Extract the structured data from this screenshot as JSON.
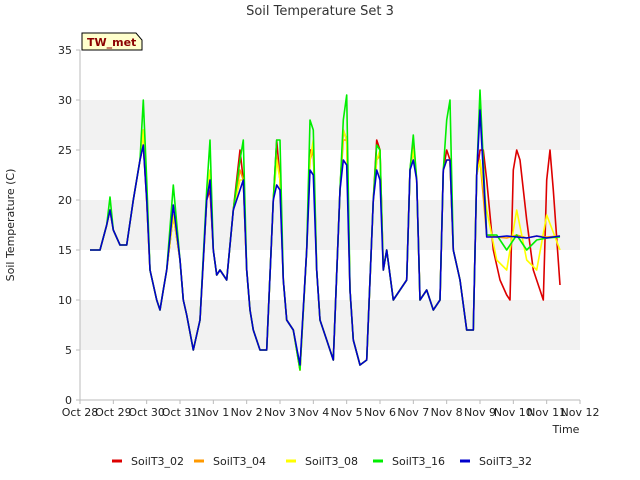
{
  "chart_data": {
    "type": "line",
    "title": "Soil Temperature Set 3",
    "xlabel": "Time",
    "ylabel": "Soil Temperature (C)",
    "ylim": [
      0,
      35
    ],
    "xlim": [
      0,
      15
    ],
    "yticks": [
      0,
      5,
      10,
      15,
      20,
      25,
      30,
      35
    ],
    "xticks": [
      "Oct 28",
      "Oct 29",
      "Oct 30",
      "Oct 31",
      "Nov 1",
      "Nov 2",
      "Nov 3",
      "Nov 4",
      "Nov 5",
      "Nov 6",
      "Nov 7",
      "Nov 8",
      "Nov 9",
      "Nov 10",
      "Nov 11",
      "Nov 12"
    ],
    "x_unit": "days since Oct 28",
    "grid": "horizontal bands",
    "legend_position": "bottom",
    "badge": "TW_met",
    "series": [
      {
        "name": "SoilT3_02",
        "color": "#dd0000",
        "x": [
          0.3,
          0.6,
          0.8,
          0.9,
          1.0,
          1.2,
          1.4,
          1.6,
          1.8,
          1.9,
          2.0,
          2.1,
          2.3,
          2.4,
          2.5,
          2.6,
          2.8,
          3.0,
          3.1,
          3.2,
          3.4,
          3.6,
          3.8,
          3.9,
          4.0,
          4.1,
          4.2,
          4.4,
          4.6,
          4.8,
          4.9,
          5.0,
          5.1,
          5.2,
          5.4,
          5.6,
          5.8,
          5.9,
          6.0,
          6.1,
          6.2,
          6.4,
          6.6,
          6.8,
          6.9,
          7.0,
          7.1,
          7.2,
          7.4,
          7.6,
          7.8,
          7.9,
          8.0,
          8.1,
          8.2,
          8.4,
          8.6,
          8.8,
          8.9,
          9.0,
          9.1,
          9.2,
          9.4,
          9.6,
          9.8,
          9.9,
          10.0,
          10.1,
          10.2,
          10.4,
          10.6,
          10.8,
          10.9,
          11.0,
          11.1,
          11.2,
          11.4,
          11.6,
          11.8,
          11.9,
          12.0,
          12.1,
          12.2,
          12.4,
          12.6,
          12.8,
          12.9,
          13.0,
          13.1,
          13.2,
          13.4,
          13.6,
          13.8,
          13.9,
          14.0,
          14.1,
          14.2,
          14.4
        ],
        "y": [
          15.0,
          15.0,
          17.5,
          19.0,
          17.0,
          15.5,
          15.5,
          20.0,
          24.0,
          25.5,
          20.0,
          13.0,
          10.0,
          9.0,
          11.0,
          13.0,
          18.5,
          14.0,
          10.0,
          8.5,
          5.0,
          8.0,
          20.0,
          21.0,
          15.0,
          12.5,
          13.0,
          12.0,
          19.0,
          25.0,
          22.0,
          13.0,
          9.0,
          7.0,
          5.0,
          5.0,
          20.0,
          26.0,
          22.0,
          12.0,
          8.0,
          7.0,
          3.0,
          15.0,
          25.0,
          25.0,
          13.0,
          8.0,
          6.0,
          4.0,
          21.0,
          27.0,
          26.0,
          11.0,
          6.0,
          3.5,
          4.0,
          20.0,
          26.0,
          25.0,
          13.0,
          15.0,
          10.0,
          11.0,
          12.0,
          23.0,
          25.0,
          22.0,
          10.0,
          11.0,
          9.0,
          10.0,
          23.0,
          25.0,
          24.0,
          15.0,
          12.0,
          7.0,
          7.0,
          22.5,
          25.0,
          25.0,
          22.0,
          15.0,
          12.0,
          10.5,
          10.0,
          23.0,
          25.0,
          24.0,
          18.0,
          13.0,
          11.0,
          10.0,
          22.0,
          25.0,
          21.0,
          11.5
        ]
      },
      {
        "name": "SoilT3_04",
        "color": "#ff9900",
        "x": [
          0.3,
          0.6,
          0.8,
          0.9,
          1.0,
          1.2,
          1.4,
          1.6,
          1.8,
          1.9,
          2.0,
          2.1,
          2.3,
          2.4,
          2.5,
          2.6,
          2.8,
          3.0,
          3.1,
          3.2,
          3.4,
          3.6,
          3.8,
          3.9,
          4.0,
          4.1,
          4.2,
          4.4,
          4.6,
          4.8,
          4.9,
          5.0,
          5.1,
          5.2,
          5.4,
          5.6,
          5.8,
          5.9,
          6.0,
          6.1,
          6.2,
          6.4,
          6.6,
          6.8,
          6.9,
          7.0,
          7.1,
          7.2,
          7.4,
          7.6,
          7.8,
          7.9,
          8.0,
          8.1,
          8.2,
          8.4,
          8.6,
          8.8,
          8.9,
          9.0,
          9.1,
          9.2,
          9.4,
          9.6,
          9.8,
          9.9,
          10.0,
          10.1,
          10.2,
          10.4,
          10.6,
          10.8,
          10.9,
          11.0,
          11.1,
          11.2,
          11.4,
          11.6,
          11.8,
          11.9,
          12.0,
          12.2,
          12.5,
          12.8,
          13.1,
          13.4,
          13.7,
          14.0,
          14.4
        ],
        "y": [
          15.0,
          15.0,
          17.5,
          19.0,
          17.0,
          15.5,
          15.5,
          20.0,
          24.0,
          27.0,
          20.0,
          13.0,
          10.0,
          9.0,
          11.0,
          13.0,
          18.5,
          14.0,
          10.0,
          8.5,
          5.0,
          8.0,
          20.0,
          22.0,
          15.0,
          12.5,
          13.0,
          12.0,
          19.0,
          23.0,
          22.0,
          13.0,
          9.0,
          7.0,
          5.0,
          5.0,
          20.0,
          24.5,
          22.0,
          12.0,
          8.0,
          7.0,
          3.0,
          15.0,
          24.0,
          25.0,
          13.0,
          8.0,
          6.0,
          4.0,
          21.0,
          26.0,
          26.0,
          11.0,
          6.0,
          3.5,
          4.0,
          20.0,
          24.0,
          24.5,
          13.0,
          15.0,
          10.0,
          11.0,
          12.0,
          23.0,
          26.0,
          22.0,
          10.0,
          11.0,
          9.0,
          10.0,
          23.0,
          24.0,
          24.0,
          15.0,
          12.0,
          7.0,
          7.0,
          22.5,
          24.0,
          16.5,
          16.3,
          16.2,
          16.5,
          16.2,
          16.4,
          16.3,
          16.4
        ]
      },
      {
        "name": "SoilT3_08",
        "color": "#ffff00",
        "x": [
          0.3,
          0.6,
          0.8,
          0.9,
          1.0,
          1.2,
          1.4,
          1.6,
          1.8,
          1.9,
          2.0,
          2.1,
          2.3,
          2.4,
          2.5,
          2.6,
          2.8,
          3.0,
          3.1,
          3.2,
          3.4,
          3.6,
          3.8,
          3.9,
          4.0,
          4.1,
          4.2,
          4.4,
          4.6,
          4.8,
          4.9,
          5.0,
          5.1,
          5.2,
          5.4,
          5.6,
          5.8,
          5.9,
          6.0,
          6.1,
          6.2,
          6.4,
          6.6,
          6.8,
          6.9,
          7.0,
          7.1,
          7.2,
          7.4,
          7.6,
          7.8,
          7.9,
          8.0,
          8.1,
          8.2,
          8.4,
          8.6,
          8.8,
          8.9,
          9.0,
          9.1,
          9.2,
          9.4,
          9.6,
          9.8,
          9.9,
          10.0,
          10.1,
          10.2,
          10.4,
          10.6,
          10.8,
          10.9,
          11.0,
          11.1,
          11.2,
          11.4,
          11.6,
          11.8,
          11.9,
          12.0,
          12.2,
          12.5,
          12.8,
          13.1,
          13.4,
          13.7,
          14.0,
          14.4
        ],
        "y": [
          15.0,
          15.0,
          17.5,
          19.0,
          17.0,
          15.5,
          15.5,
          20.0,
          24.0,
          27.0,
          20.0,
          13.0,
          10.0,
          9.0,
          11.0,
          13.0,
          18.5,
          14.0,
          10.0,
          8.5,
          5.0,
          8.0,
          20.0,
          23.0,
          15.0,
          12.5,
          13.0,
          12.0,
          19.0,
          22.0,
          22.0,
          13.0,
          9.0,
          7.0,
          5.0,
          5.0,
          20.0,
          24.0,
          22.0,
          12.0,
          8.0,
          7.0,
          3.0,
          15.0,
          24.0,
          26.0,
          13.0,
          8.0,
          6.0,
          4.0,
          21.0,
          27.0,
          26.0,
          11.0,
          6.0,
          3.5,
          4.0,
          20.0,
          24.0,
          25.0,
          13.0,
          15.0,
          10.0,
          11.0,
          12.0,
          23.0,
          25.0,
          22.0,
          10.0,
          11.0,
          9.0,
          10.0,
          23.0,
          24.0,
          24.0,
          15.0,
          12.0,
          7.0,
          7.0,
          22.5,
          24.0,
          19.0,
          14.0,
          13.0,
          19.0,
          14.0,
          13.0,
          18.5,
          15.0
        ]
      },
      {
        "name": "SoilT3_16",
        "color": "#00ee00",
        "x": [
          0.3,
          0.6,
          0.8,
          0.9,
          1.0,
          1.2,
          1.4,
          1.6,
          1.8,
          1.9,
          2.0,
          2.1,
          2.3,
          2.4,
          2.5,
          2.6,
          2.8,
          3.0,
          3.1,
          3.2,
          3.4,
          3.6,
          3.8,
          3.9,
          4.0,
          4.1,
          4.2,
          4.4,
          4.6,
          4.8,
          4.9,
          5.0,
          5.1,
          5.2,
          5.4,
          5.6,
          5.8,
          5.9,
          6.0,
          6.1,
          6.2,
          6.4,
          6.6,
          6.8,
          6.9,
          7.0,
          7.1,
          7.2,
          7.4,
          7.6,
          7.8,
          7.9,
          8.0,
          8.1,
          8.2,
          8.4,
          8.6,
          8.8,
          8.9,
          9.0,
          9.1,
          9.2,
          9.4,
          9.6,
          9.8,
          9.9,
          10.0,
          10.1,
          10.2,
          10.4,
          10.6,
          10.8,
          10.9,
          11.0,
          11.1,
          11.2,
          11.4,
          11.6,
          11.8,
          11.9,
          12.0,
          12.2,
          12.5,
          12.8,
          13.1,
          13.4,
          13.7,
          14.0,
          14.4
        ],
        "y": [
          15.0,
          15.0,
          17.5,
          20.3,
          17.0,
          15.5,
          15.5,
          20.0,
          24.0,
          30.0,
          22.0,
          13.0,
          10.0,
          9.0,
          11.0,
          13.0,
          21.5,
          14.0,
          10.0,
          8.5,
          5.0,
          8.0,
          21.0,
          26.0,
          15.0,
          12.5,
          13.0,
          12.0,
          19.0,
          24.0,
          26.0,
          13.0,
          9.0,
          7.0,
          5.0,
          5.0,
          20.0,
          26.0,
          26.0,
          12.0,
          8.0,
          7.0,
          3.0,
          15.0,
          28.0,
          27.0,
          13.0,
          8.0,
          6.0,
          4.0,
          21.0,
          28.0,
          30.5,
          11.0,
          6.0,
          3.5,
          4.0,
          20.0,
          25.5,
          25.0,
          13.0,
          15.0,
          10.0,
          11.0,
          12.0,
          23.0,
          26.5,
          22.0,
          10.0,
          11.0,
          9.0,
          10.0,
          23.0,
          28.0,
          30.0,
          15.0,
          12.0,
          7.0,
          7.0,
          22.5,
          31.0,
          16.5,
          16.5,
          15.0,
          16.5,
          15.0,
          16.0,
          16.2,
          16.3
        ]
      },
      {
        "name": "SoilT3_32",
        "color": "#0000cc",
        "x": [
          0.3,
          0.6,
          0.8,
          0.9,
          1.0,
          1.2,
          1.4,
          1.6,
          1.8,
          1.9,
          2.0,
          2.1,
          2.3,
          2.4,
          2.5,
          2.6,
          2.8,
          3.0,
          3.1,
          3.2,
          3.4,
          3.6,
          3.8,
          3.9,
          4.0,
          4.1,
          4.2,
          4.4,
          4.6,
          4.8,
          4.9,
          5.0,
          5.1,
          5.2,
          5.4,
          5.6,
          5.8,
          5.9,
          6.0,
          6.1,
          6.2,
          6.4,
          6.6,
          6.8,
          6.9,
          7.0,
          7.1,
          7.2,
          7.4,
          7.6,
          7.8,
          7.9,
          8.0,
          8.1,
          8.2,
          8.4,
          8.6,
          8.8,
          8.9,
          9.0,
          9.1,
          9.2,
          9.4,
          9.6,
          9.8,
          9.9,
          10.0,
          10.1,
          10.2,
          10.4,
          10.6,
          10.8,
          10.9,
          11.0,
          11.1,
          11.2,
          11.4,
          11.6,
          11.8,
          11.9,
          12.0,
          12.2,
          12.5,
          12.8,
          13.1,
          13.4,
          13.7,
          14.0,
          14.4
        ],
        "y": [
          15.0,
          15.0,
          17.5,
          19.0,
          17.0,
          15.5,
          15.5,
          20.0,
          24.0,
          25.5,
          20.0,
          13.0,
          10.0,
          9.0,
          11.0,
          13.0,
          19.5,
          14.0,
          10.0,
          8.5,
          5.0,
          8.0,
          20.0,
          22.0,
          15.0,
          12.5,
          13.0,
          12.0,
          19.0,
          21.0,
          22.0,
          13.0,
          9.0,
          7.0,
          5.0,
          5.0,
          20.0,
          21.5,
          21.0,
          12.0,
          8.0,
          7.0,
          3.5,
          15.0,
          23.0,
          22.5,
          13.0,
          8.0,
          6.0,
          4.0,
          21.0,
          24.0,
          23.5,
          11.0,
          6.0,
          3.5,
          4.0,
          20.0,
          23.0,
          22.0,
          13.0,
          15.0,
          10.0,
          11.0,
          12.0,
          23.0,
          24.0,
          22.0,
          10.0,
          11.0,
          9.0,
          10.0,
          23.0,
          24.0,
          24.0,
          15.0,
          12.0,
          7.0,
          7.0,
          22.5,
          29.0,
          16.3,
          16.3,
          16.4,
          16.3,
          16.2,
          16.4,
          16.2,
          16.4
        ]
      }
    ]
  }
}
